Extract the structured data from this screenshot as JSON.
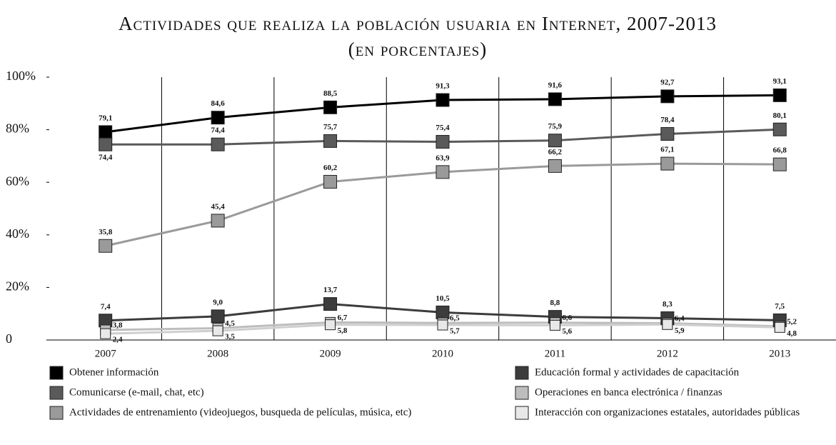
{
  "chart_data": {
    "type": "line",
    "title": "Actividades que realiza la población usuaria en Internet, 2007-2013",
    "subtitle": "(en porcentajes)",
    "categories": [
      "2007",
      "2008",
      "2009",
      "2010",
      "2011",
      "2012",
      "2013"
    ],
    "ylim": [
      0,
      100
    ],
    "yticks": [
      0,
      {
        "value": 20,
        "label": "20%"
      },
      {
        "value": 40,
        "label": "40%"
      },
      {
        "value": 60,
        "label": "60%"
      },
      {
        "value": 80,
        "label": "80%"
      },
      {
        "value": 100,
        "label": "100%"
      }
    ],
    "series": [
      {
        "name": "Obtener información",
        "color": "#000000",
        "values": [
          79.1,
          84.6,
          88.5,
          91.3,
          91.6,
          92.7,
          93.1
        ],
        "value_labels": [
          "79,1",
          "84,6",
          "88,5",
          "91,3",
          "91,6",
          "92,7",
          "93,1"
        ]
      },
      {
        "name": "Comunicarse (e-mail, chat, etc)",
        "color": "#5a5a5a",
        "values": [
          74.4,
          74.4,
          75.7,
          75.4,
          75.9,
          78.4,
          80.1
        ],
        "value_labels": [
          "74,4",
          "74,4",
          "75,7",
          "75,4",
          "75,9",
          "78,4",
          "80,1"
        ]
      },
      {
        "name": "Actividades de entrenamiento (videojuegos, busqueda de películas, música, etc)",
        "color": "#9a9a9a",
        "values": [
          35.8,
          45.4,
          60.2,
          63.9,
          66.2,
          67.1,
          66.8
        ],
        "value_labels": [
          "35,8",
          "45,4",
          "60,2",
          "63,9",
          "66,2",
          "67,1",
          "66,8"
        ]
      },
      {
        "name": "Educación formal y actividades de capacitación",
        "color": "#3c3c3c",
        "values": [
          7.4,
          9.0,
          13.7,
          10.5,
          8.8,
          8.3,
          7.5
        ],
        "value_labels": [
          "7,4",
          "9,0",
          "13,7",
          "10,5",
          "8,8",
          "8,3",
          "7,5"
        ]
      },
      {
        "name": "Operaciones en banca electrónica / finanzas",
        "color": "#bdbdbd",
        "values": [
          3.8,
          4.5,
          6.7,
          6.5,
          6.6,
          6.4,
          5.2
        ],
        "value_labels": [
          "3,8",
          "4,5",
          "6,7",
          "6,5",
          "6,6",
          "6,4",
          "5,2"
        ]
      },
      {
        "name": "Interacción con organizaciones estatales, autoridades públicas",
        "color": "#e8e8e8",
        "values": [
          2.4,
          3.5,
          5.8,
          5.7,
          5.6,
          5.9,
          4.8
        ],
        "value_labels": [
          "2,4",
          "3,5",
          "5,8",
          "5,7",
          "5,6",
          "5,9",
          "4,8"
        ]
      }
    ]
  }
}
